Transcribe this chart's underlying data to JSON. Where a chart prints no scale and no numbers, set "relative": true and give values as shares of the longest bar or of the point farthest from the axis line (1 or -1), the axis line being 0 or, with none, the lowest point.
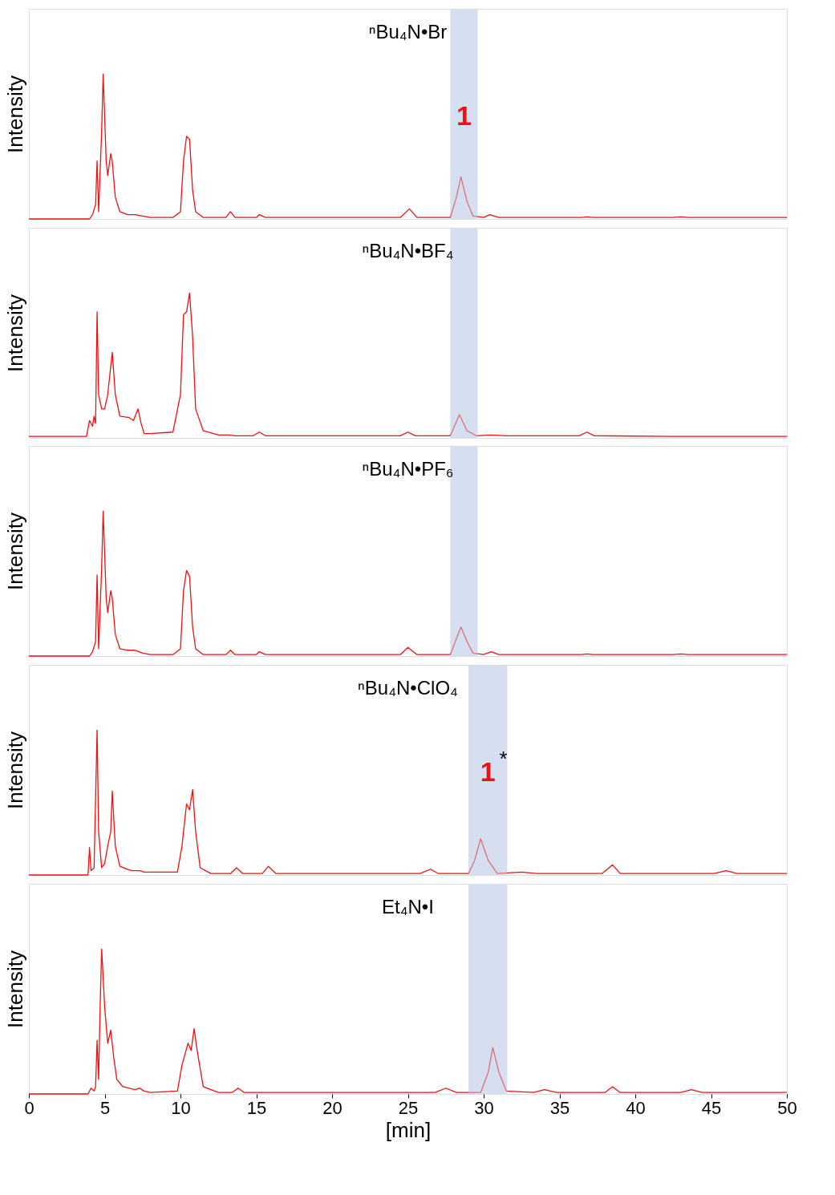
{
  "chart_data": [
    {
      "type": "line",
      "title": "ⁿBu₄N•Br",
      "ylabel": "Intensity",
      "relative": true,
      "xlim": [
        0,
        50
      ],
      "xticks": [
        0,
        5,
        10,
        15,
        20,
        25,
        30,
        35,
        40,
        45,
        50
      ],
      "tick_labels": false,
      "grid": false,
      "x": [
        0,
        4.0,
        4.2,
        4.4,
        4.5,
        4.6,
        4.8,
        4.9,
        5.0,
        5.1,
        5.2,
        5.4,
        5.5,
        5.7,
        6.0,
        6.5,
        7.0,
        7.5,
        8.0,
        9.5,
        10.0,
        10.2,
        10.4,
        10.6,
        10.8,
        11.0,
        11.5,
        13.0,
        13.3,
        13.6,
        15.0,
        15.2,
        15.6,
        24.5,
        25.1,
        25.6,
        27.8,
        28.2,
        28.5,
        28.9,
        29.3,
        30.0,
        30.4,
        31.0,
        36.5,
        36.8,
        37.2,
        42.5,
        43.0,
        43.5,
        50
      ],
      "series": [
        {
          "color": "#ee1111",
          "values": [
            0,
            0,
            0.03,
            0.1,
            0.4,
            0.05,
            0.6,
            1.0,
            0.7,
            0.4,
            0.3,
            0.45,
            0.4,
            0.15,
            0.05,
            0.03,
            0.03,
            0.02,
            0.01,
            0.01,
            0.05,
            0.4,
            0.57,
            0.55,
            0.2,
            0.05,
            0.01,
            0.01,
            0.05,
            0.01,
            0.01,
            0.03,
            0.01,
            0.01,
            0.07,
            0.01,
            0.01,
            0.15,
            0.29,
            0.12,
            0.02,
            0.01,
            0.03,
            0.01,
            0.01,
            0.015,
            0.01,
            0.01,
            0.015,
            0.01,
            0.01
          ]
        }
      ],
      "bands": [
        {
          "axis": "x",
          "from": 27.8,
          "to": 29.6,
          "color": "#d3ddef"
        }
      ],
      "annotations": [
        "1"
      ]
    },
    {
      "type": "line",
      "title": "ⁿBu₄N•BF₄",
      "ylabel": "Intensity",
      "relative": true,
      "xlim": [
        0,
        50
      ],
      "xticks": [
        0,
        5,
        10,
        15,
        20,
        25,
        30,
        35,
        40,
        45,
        50
      ],
      "tick_labels": false,
      "grid": false,
      "x": [
        0,
        3.8,
        4.0,
        4.2,
        4.3,
        4.4,
        4.5,
        4.6,
        4.8,
        5.0,
        5.2,
        5.5,
        5.7,
        6.0,
        6.6,
        6.9,
        7.2,
        7.4,
        7.6,
        8.0,
        9.5,
        10.0,
        10.2,
        10.4,
        10.6,
        10.8,
        11.0,
        11.5,
        12.5,
        13.2,
        13.6,
        14.8,
        15.2,
        15.6,
        24.5,
        25.0,
        25.5,
        27.8,
        28.4,
        28.9,
        29.5,
        30.5,
        31.5,
        36.3,
        36.8,
        37.3,
        42.5,
        43.0,
        43.5,
        50
      ],
      "series": [
        {
          "color": "#ee1111",
          "values": [
            0.01,
            0.01,
            0.12,
            0.08,
            0.15,
            0.1,
            0.87,
            0.3,
            0.2,
            0.2,
            0.3,
            0.59,
            0.3,
            0.15,
            0.14,
            0.12,
            0.2,
            0.1,
            0.03,
            0.03,
            0.04,
            0.3,
            0.85,
            0.87,
            1.0,
            0.7,
            0.2,
            0.05,
            0.02,
            0.02,
            0.015,
            0.015,
            0.04,
            0.015,
            0.015,
            0.04,
            0.015,
            0.015,
            0.16,
            0.05,
            0.015,
            0.02,
            0.015,
            0.015,
            0.04,
            0.015,
            0.01,
            0.01,
            0.01,
            0.01
          ]
        }
      ],
      "bands": [
        {
          "axis": "x",
          "from": 27.8,
          "to": 29.6,
          "color": "#d3ddef"
        }
      ]
    },
    {
      "type": "line",
      "title": "ⁿBu₄N•PF₆",
      "ylabel": "Intensity",
      "relative": true,
      "xlim": [
        0,
        50
      ],
      "xticks": [
        0,
        5,
        10,
        15,
        20,
        25,
        30,
        35,
        40,
        45,
        50
      ],
      "tick_labels": false,
      "grid": false,
      "x": [
        0,
        4.0,
        4.2,
        4.4,
        4.5,
        4.6,
        4.8,
        4.9,
        5.0,
        5.1,
        5.2,
        5.4,
        5.5,
        5.7,
        6.0,
        6.5,
        7.0,
        7.5,
        8.0,
        9.5,
        10.0,
        10.2,
        10.4,
        10.6,
        10.8,
        11.0,
        11.5,
        13.0,
        13.3,
        13.6,
        15.0,
        15.2,
        15.6,
        24.5,
        25.0,
        25.6,
        27.8,
        28.2,
        28.5,
        28.9,
        29.3,
        30.0,
        30.5,
        31.0,
        36.5,
        36.8,
        37.2,
        42.5,
        43.0,
        43.5,
        50
      ],
      "series": [
        {
          "color": "#ee1111",
          "values": [
            0,
            0,
            0.03,
            0.1,
            0.56,
            0.05,
            0.6,
            1.0,
            0.7,
            0.4,
            0.3,
            0.45,
            0.4,
            0.15,
            0.05,
            0.04,
            0.04,
            0.02,
            0.01,
            0.01,
            0.05,
            0.45,
            0.59,
            0.55,
            0.2,
            0.05,
            0.01,
            0.01,
            0.04,
            0.01,
            0.01,
            0.03,
            0.01,
            0.01,
            0.06,
            0.01,
            0.01,
            0.12,
            0.2,
            0.1,
            0.02,
            0.01,
            0.03,
            0.01,
            0.01,
            0.015,
            0.01,
            0.01,
            0.015,
            0.01,
            0.01
          ]
        }
      ],
      "bands": [
        {
          "axis": "x",
          "from": 27.8,
          "to": 29.6,
          "color": "#d3ddef"
        }
      ]
    },
    {
      "type": "line",
      "title": "ⁿBu₄N•ClO₄",
      "ylabel": "Intensity",
      "relative": true,
      "xlim": [
        0,
        50
      ],
      "xticks": [
        0,
        5,
        10,
        15,
        20,
        25,
        30,
        35,
        40,
        45,
        50
      ],
      "tick_labels": false,
      "grid": false,
      "x": [
        0,
        3.9,
        4.0,
        4.1,
        4.3,
        4.5,
        4.6,
        4.8,
        5.0,
        5.2,
        5.4,
        5.5,
        5.7,
        6.0,
        6.5,
        6.8,
        7.3,
        7.6,
        8.0,
        9.8,
        10.1,
        10.4,
        10.6,
        10.8,
        11.0,
        11.3,
        12.0,
        13.3,
        13.7,
        14.1,
        15.4,
        15.8,
        16.3,
        25.8,
        26.5,
        27.0,
        29.0,
        29.4,
        29.8,
        30.3,
        30.9,
        32.5,
        33.5,
        37.8,
        38.5,
        39.0,
        45.2,
        46.0,
        46.7,
        50
      ],
      "series": [
        {
          "color": "#ee1111",
          "values": [
            0,
            0,
            0.19,
            0.03,
            0.05,
            1.0,
            0.3,
            0.05,
            0.08,
            0.2,
            0.3,
            0.58,
            0.2,
            0.06,
            0.04,
            0.03,
            0.03,
            0.02,
            0.02,
            0.02,
            0.2,
            0.49,
            0.45,
            0.59,
            0.3,
            0.05,
            0.01,
            0.01,
            0.05,
            0.01,
            0.01,
            0.06,
            0.01,
            0.01,
            0.04,
            0.01,
            0.01,
            0.1,
            0.25,
            0.1,
            0.01,
            0.02,
            0.01,
            0.01,
            0.07,
            0.01,
            0.01,
            0.03,
            0.01,
            0.01
          ]
        }
      ],
      "bands": [
        {
          "axis": "x",
          "from": 29.0,
          "to": 31.55,
          "color": "#d3ddef"
        }
      ],
      "annotations": [
        "1",
        "*"
      ]
    },
    {
      "type": "line",
      "title": "Et₄N•I",
      "ylabel": "Intensity",
      "xlabel": "[min]",
      "relative": true,
      "xlim": [
        0,
        50
      ],
      "xticks": [
        0,
        5,
        10,
        15,
        20,
        25,
        30,
        35,
        40,
        45,
        50
      ],
      "tick_labels": "x",
      "grid": false,
      "x": [
        0,
        3.9,
        4.1,
        4.3,
        4.4,
        4.5,
        4.6,
        4.7,
        4.8,
        5.0,
        5.2,
        5.4,
        5.6,
        5.8,
        6.2,
        7.0,
        7.3,
        7.6,
        8.0,
        9.8,
        10.1,
        10.5,
        10.7,
        10.9,
        11.1,
        11.5,
        12.5,
        13.4,
        13.8,
        14.2,
        15.8,
        16.5,
        26.8,
        27.5,
        28.2,
        29.8,
        30.3,
        30.6,
        31.0,
        31.5,
        33.3,
        34.0,
        34.8,
        38.0,
        38.5,
        39.0,
        43.0,
        43.7,
        44.4,
        50
      ],
      "series": [
        {
          "color": "#ee1111",
          "values": [
            0,
            0,
            0.04,
            0.02,
            0.05,
            0.37,
            0.1,
            0.6,
            1.0,
            0.6,
            0.35,
            0.44,
            0.25,
            0.1,
            0.05,
            0.03,
            0.04,
            0.02,
            0.01,
            0.02,
            0.2,
            0.35,
            0.3,
            0.45,
            0.3,
            0.05,
            0.01,
            0.01,
            0.04,
            0.01,
            0.01,
            0.01,
            0.01,
            0.04,
            0.01,
            0.01,
            0.15,
            0.32,
            0.15,
            0.02,
            0.01,
            0.03,
            0.01,
            0.01,
            0.05,
            0.01,
            0.01,
            0.03,
            0.01,
            0.01
          ]
        }
      ],
      "bands": [
        {
          "axis": "x",
          "from": 29.0,
          "to": 31.55,
          "color": "#d3ddef"
        }
      ]
    }
  ]
}
